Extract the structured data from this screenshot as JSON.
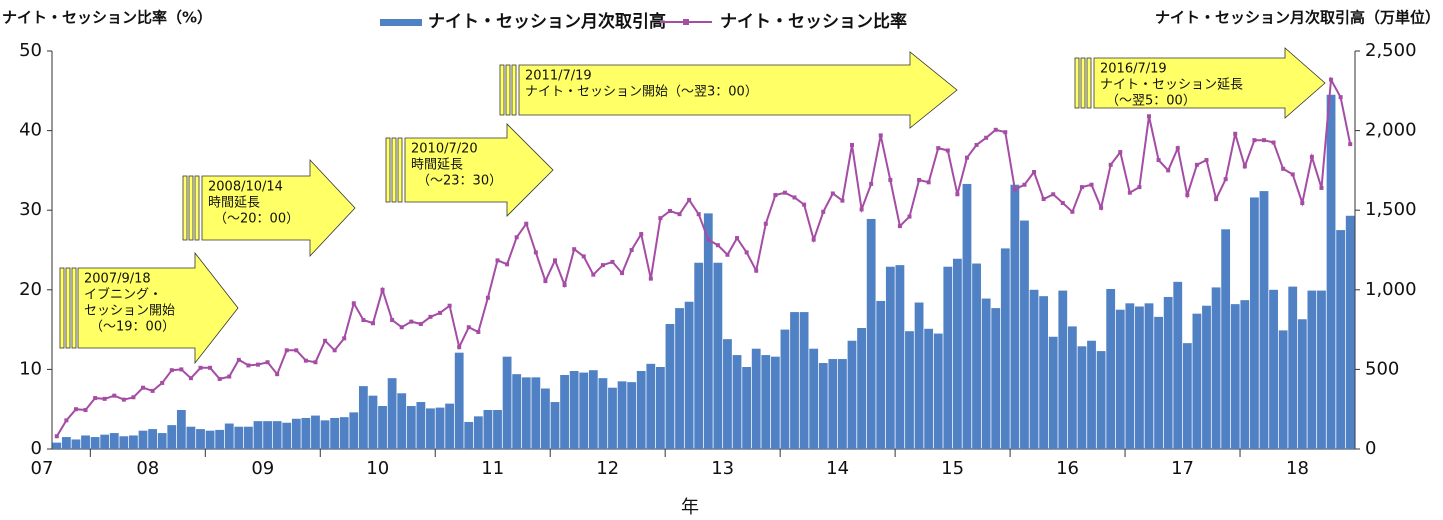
{
  "chart_data": {
    "type": "bar_line",
    "y_label": "ナイト・セッション比率（%）",
    "y2_label": "ナイト・セッション月次取引高（万単位）",
    "x_label": "年",
    "x_tick_labels": [
      "07",
      "08",
      "09",
      "10",
      "11",
      "12",
      "13",
      "14",
      "15",
      "16",
      "17",
      "18"
    ],
    "ylim": [
      0,
      50
    ],
    "yticks": [
      0,
      10,
      20,
      30,
      40,
      50
    ],
    "y2lim": [
      0,
      2500
    ],
    "y2ticks": [
      0,
      500,
      {
        "value": 1000,
        "label": "1,000"
      },
      {
        "value": 1500,
        "label": "1,500"
      },
      {
        "value": 2000,
        "label": "2,000"
      },
      {
        "value": 2500,
        "label": "2,500"
      }
    ],
    "series": [
      {
        "name": "ナイト・セッション月次取引高",
        "type": "bar",
        "axis": "y2",
        "color": "#4f81c4",
        "values": [
          40,
          75,
          60,
          85,
          75,
          90,
          100,
          80,
          85,
          115,
          125,
          100,
          150,
          245,
          140,
          125,
          115,
          120,
          160,
          140,
          140,
          175,
          175,
          175,
          165,
          190,
          195,
          210,
          180,
          195,
          200,
          230,
          395,
          335,
          270,
          445,
          350,
          270,
          295,
          255,
          260,
          285,
          605,
          170,
          205,
          245,
          245,
          580,
          470,
          450,
          450,
          380,
          295,
          465,
          490,
          480,
          495,
          445,
          385,
          425,
          420,
          490,
          535,
          515,
          785,
          885,
          925,
          1170,
          1480,
          1170,
          690,
          590,
          515,
          630,
          590,
          580,
          750,
          860,
          860,
          630,
          540,
          565,
          565,
          680,
          760,
          1445,
          930,
          1145,
          1155,
          740,
          920,
          755,
          725,
          1145,
          1195,
          1665,
          1165,
          945,
          885,
          1260,
          1660,
          1435,
          1000,
          960,
          705,
          995,
          770,
          645,
          680,
          615,
          1005,
          875,
          915,
          895,
          915,
          830,
          955,
          1050,
          665,
          850,
          900,
          1015,
          1380,
          910,
          935,
          1580,
          1620,
          1000,
          745,
          1020,
          815,
          995,
          995,
          2225,
          1375,
          1465
        ]
      },
      {
        "name": "ナイト・セッション比率",
        "type": "line",
        "color": "#a54ca5",
        "values": [
          1.6,
          3.6,
          5,
          4.9,
          6.4,
          6.3,
          6.7,
          6.2,
          6.5,
          7.7,
          7.3,
          8.3,
          9.9,
          10,
          8.9,
          10.2,
          10.2,
          8.8,
          9.1,
          11.2,
          10.5,
          10.6,
          10.9,
          9.4,
          12.4,
          12.4,
          11.1,
          10.9,
          13.6,
          12.4,
          13.9,
          18.3,
          16.2,
          15.8,
          20,
          16.2,
          15.3,
          16,
          15.7,
          16.6,
          17.1,
          18,
          12.8,
          15.3,
          14.7,
          19,
          23.7,
          23.2,
          26.6,
          28.3,
          24.7,
          21.1,
          23.7,
          20.6,
          25.1,
          24.2,
          21.9,
          23.1,
          23.5,
          22.1,
          25,
          27,
          21.4,
          29,
          29.9,
          29.5,
          31.3,
          29.5,
          26.3,
          25.6,
          24.4,
          26.5,
          24.7,
          22.4,
          28.3,
          31.9,
          32.2,
          31.6,
          30.7,
          26.3,
          29.8,
          32.1,
          31.2,
          38.2,
          30.1,
          33.3,
          39.4,
          33.8,
          28,
          29.2,
          33.8,
          33.5,
          37.8,
          37.5,
          32,
          36.6,
          38.2,
          39.1,
          40.1,
          39.8,
          32.6,
          33.2,
          34.8,
          31.4,
          32,
          30.9,
          29.8,
          32.9,
          33.2,
          30.3,
          35.7,
          37.3,
          32.2,
          32.9,
          41.8,
          36.3,
          35,
          37.8,
          31.9,
          35.7,
          36.3,
          31.4,
          33.9,
          39.6,
          35.5,
          38.8,
          38.8,
          38.5,
          35.2,
          34.5,
          30.9,
          36.7,
          32.8,
          46.4,
          44.2,
          38.3
        ]
      }
    ],
    "annotations": [
      {
        "lines": [
          "2007/9/18",
          "イブニング・",
          "セッション開始",
          "（〜19：00）"
        ]
      },
      {
        "lines": [
          "2008/10/14",
          "時間延長",
          "（〜20：00）"
        ]
      },
      {
        "lines": [
          "2010/7/20",
          "時間延長",
          "（〜23：30）"
        ]
      },
      {
        "lines": [
          "2011/7/19",
          "ナイト・セッション開始（〜翌3：00）"
        ]
      },
      {
        "lines": [
          "2016/7/19",
          "ナイト・セッション延長",
          "（〜翌5：00）"
        ]
      }
    ]
  }
}
